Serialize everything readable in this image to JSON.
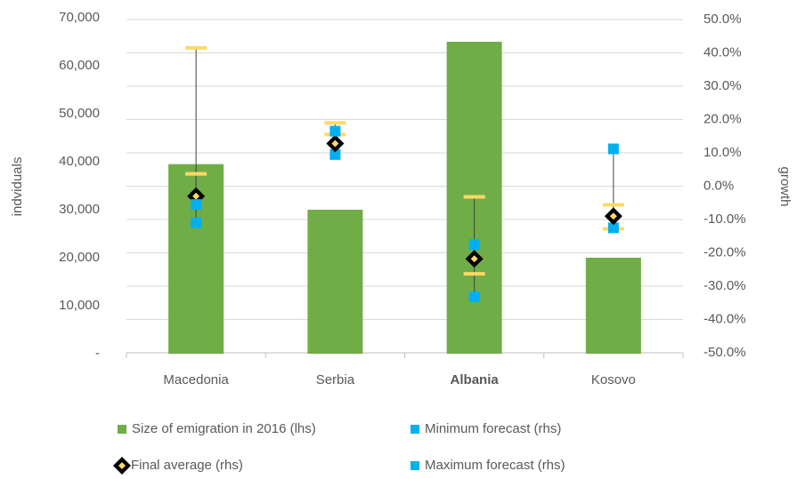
{
  "chart_data": {
    "type": "bar_forecast",
    "categories": [
      "Macedonia",
      "Serbia",
      "Albania",
      "Kosovo"
    ],
    "bold": [
      false,
      false,
      true,
      false
    ],
    "y_label": "indviduals",
    "y2_label": "growth",
    "ylim": [
      0,
      70000
    ],
    "yticks": [
      {
        "value": 0,
        "label": "-"
      },
      {
        "value": 10000,
        "label": "10,000"
      },
      {
        "value": 20000,
        "label": "20,000"
      },
      {
        "value": 30000,
        "label": "30,000"
      },
      {
        "value": 40000,
        "label": "40,000"
      },
      {
        "value": 50000,
        "label": "50,000"
      },
      {
        "value": 60000,
        "label": "60,000"
      },
      {
        "value": 70000,
        "label": "70,000"
      }
    ],
    "y2lim": [
      -50,
      50
    ],
    "y2ticks": [
      {
        "value": -50,
        "label": "-50.0%"
      },
      {
        "value": -40,
        "label": "-40.0%"
      },
      {
        "value": -30,
        "label": "-30.0%"
      },
      {
        "value": -20,
        "label": "-20.0%"
      },
      {
        "value": -10,
        "label": "-10.0%"
      },
      {
        "value": 0,
        "label": "0.0%"
      },
      {
        "value": 10,
        "label": "10.0%"
      },
      {
        "value": 20,
        "label": "20.0%"
      },
      {
        "value": 30,
        "label": "30.0%"
      },
      {
        "value": 40,
        "label": "40.0%"
      },
      {
        "value": 50,
        "label": "50.0%"
      }
    ],
    "grid": true,
    "series": [
      {
        "name": "Size of emigration in 2016 (lhs)",
        "kind": "bar",
        "color": "#70ad47",
        "values": [
          39500,
          30000,
          65000,
          20000
        ]
      },
      {
        "name": "Minimum forecast (rhs)",
        "kind": "square",
        "axis": "y2",
        "color": "#00b0f0",
        "values": [
          -11,
          9.5,
          -33.2,
          -12.5
        ]
      },
      {
        "name": "Final average (rhs)",
        "kind": "diamond",
        "axis": "y2",
        "color": "#000000",
        "values": [
          -3,
          12.8,
          -21.8,
          -9
        ]
      },
      {
        "name": "Maximum forecast (rhs)",
        "kind": "square",
        "axis": "y2",
        "color": "#00b0f0",
        "values": [
          -5.5,
          16.5,
          -17.5,
          11.2
        ]
      }
    ],
    "range": {
      "axis": "y2",
      "color": "#404040",
      "low": [
        -11,
        9.5,
        -33.2,
        -12.5
      ],
      "high": [
        41.5,
        19,
        -3.2,
        11.2
      ]
    },
    "caps": {
      "axis": "y2",
      "color": "#ffd966",
      "values": [
        [
          41.5,
          3.7
        ],
        [
          19,
          15.5
        ],
        [
          -3.2,
          -26.3
        ],
        [
          -5.6,
          -12.8
        ]
      ]
    }
  }
}
